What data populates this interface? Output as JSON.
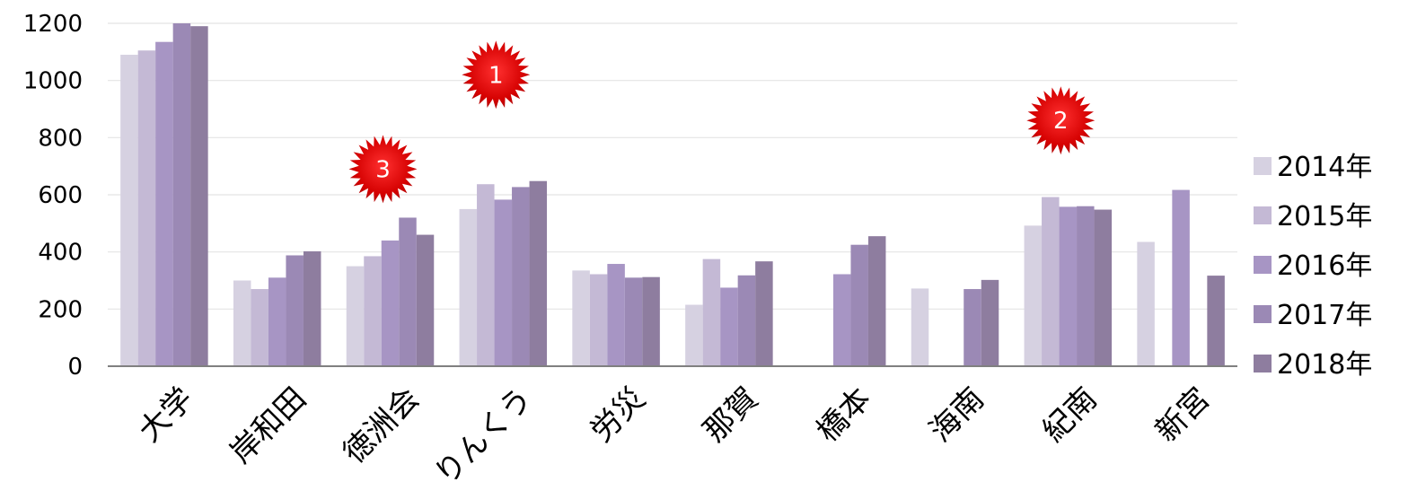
{
  "chart_data": {
    "type": "bar",
    "title": "",
    "xlabel": "",
    "ylabel": "",
    "ylim": [
      0,
      1200
    ],
    "yticks": [
      0,
      200,
      400,
      600,
      800,
      1000,
      1200
    ],
    "grid": true,
    "legend_position": "right",
    "categories": [
      "大学",
      "岸和田",
      "徳洲会",
      "りんくう",
      "労災",
      "那賀",
      "橋本",
      "海南",
      "紀南",
      "新宮"
    ],
    "series": [
      {
        "name": "2014年",
        "color": "#d6d1e1",
        "values": [
          1090,
          300,
          350,
          550,
          335,
          215,
          null,
          272,
          492,
          435
        ]
      },
      {
        "name": "2015年",
        "color": "#c4b9d5",
        "values": [
          1105,
          270,
          385,
          637,
          322,
          375,
          null,
          null,
          592,
          null
        ]
      },
      {
        "name": "2016年",
        "color": "#a795c4",
        "values": [
          1135,
          310,
          440,
          583,
          358,
          275,
          322,
          null,
          558,
          617
        ]
      },
      {
        "name": "2017年",
        "color": "#9b89b5",
        "values": [
          1200,
          388,
          520,
          627,
          310,
          318,
          425,
          270,
          560,
          null
        ]
      },
      {
        "name": "2018年",
        "color": "#8e7d9f",
        "values": [
          1190,
          402,
          460,
          648,
          312,
          367,
          455,
          302,
          548,
          317
        ]
      }
    ],
    "annotations": [
      {
        "label": "1",
        "category": "りんくう",
        "value": 1020
      },
      {
        "label": "2",
        "category": "紀南",
        "value": 860
      },
      {
        "label": "3",
        "category": "徳洲会",
        "value": 690
      }
    ]
  }
}
